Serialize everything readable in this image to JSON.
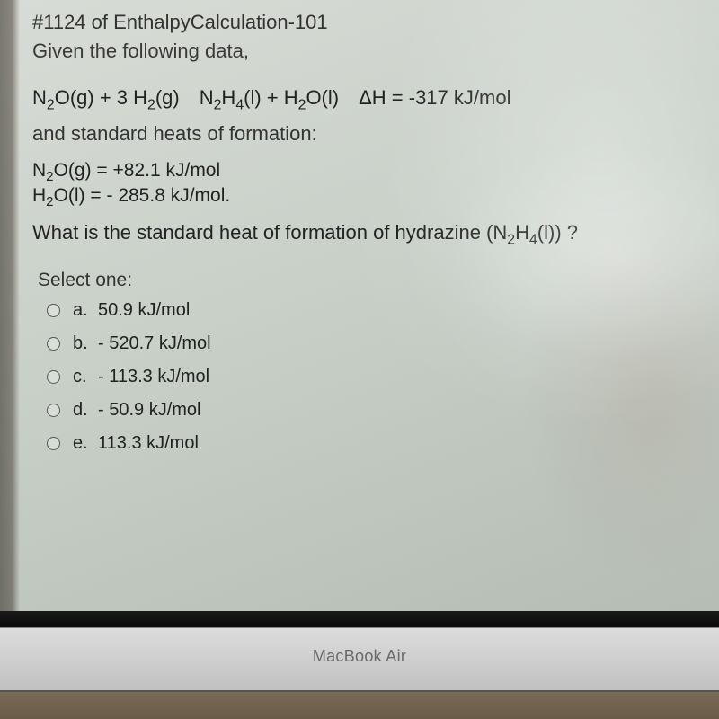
{
  "header": {
    "line1": "#1124 of EnthalpyCalculation-101",
    "line2": "Given the following data,"
  },
  "equation_html": "N<sub>2</sub>O(g) + 3 H<sub>2</sub>(g) N<sub>2</sub>H<sub>4</sub>(l) + H<sub>2</sub>O(l) ΔH = -317 kJ/mol",
  "heats_intro": "and standard heats of formation:",
  "data1_html": "N<sub>2</sub>O(g) = +82.1 kJ/mol",
  "data2_html": "H<sub>2</sub>O(l) = - 285.8 kJ/mol.",
  "question_html": "What is the standard heat of formation of hydrazine (N<sub>2</sub>H<sub>4</sub>(l)) ?",
  "select_label": "Select one:",
  "options": [
    {
      "letter": "a.",
      "text": "50.9 kJ/mol"
    },
    {
      "letter": "b.",
      "text": "- 520.7 kJ/mol"
    },
    {
      "letter": "c.",
      "text": "- 113.3 kJ/mol"
    },
    {
      "letter": "d.",
      "text": "- 50.9 kJ/mol"
    },
    {
      "letter": "e.",
      "text": "113.3  kJ/mol"
    }
  ],
  "laptop_label": "MacBook Air",
  "colors": {
    "text": "#2a2a2a",
    "bezel_silver": "#cfcfcf",
    "bezel_black": "#0a0a0a",
    "desk": "#6a5a48"
  }
}
